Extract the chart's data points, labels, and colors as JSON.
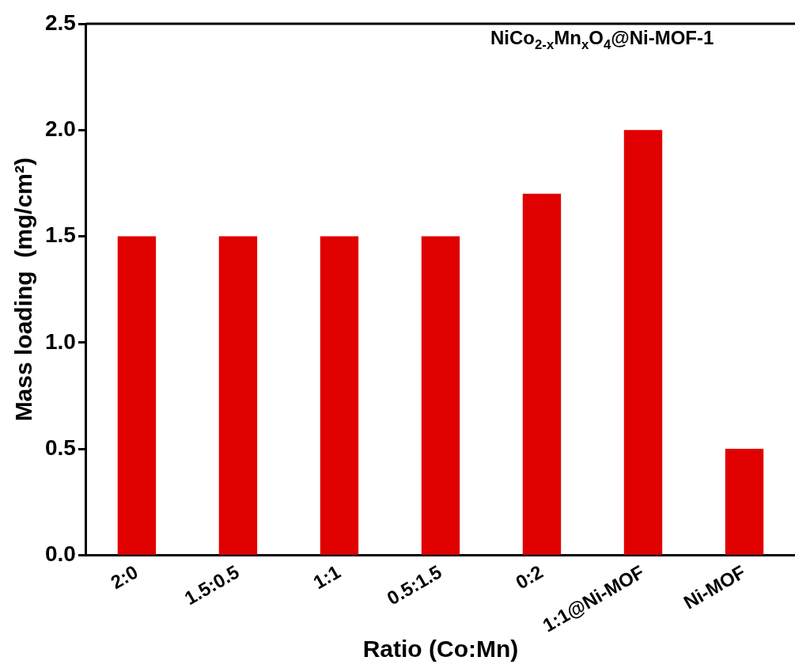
{
  "chart_data": {
    "type": "bar",
    "xlabel": "Ratio (Co:Mn)",
    "ylabel": "Mass loading  (mg/cm²)",
    "categories": [
      "2:0",
      "1.5:0.5",
      "1:1",
      "0.5:1.5",
      "0:2",
      "1:1@Ni-MOF",
      "Ni-MOF"
    ],
    "values": [
      1.5,
      1.5,
      1.5,
      1.5,
      1.7,
      2.0,
      0.5
    ],
    "color": "#e00000",
    "ylim": [
      0,
      2.5
    ],
    "yticks": [
      {
        "value": 0,
        "label": "0.0"
      },
      {
        "value": 0.5,
        "label": "0.5"
      },
      {
        "value": 1,
        "label": "1.0"
      },
      {
        "value": 1.5,
        "label": "1.5"
      },
      {
        "value": 2,
        "label": "2.0"
      },
      {
        "value": 2.5,
        "label": "2.5"
      }
    ],
    "annotations": [
      "NiCo$_{2-x}$Mn$_{x}$O$_{4}$@Ni-MOF-1"
    ],
    "grid": false,
    "legend": false
  }
}
